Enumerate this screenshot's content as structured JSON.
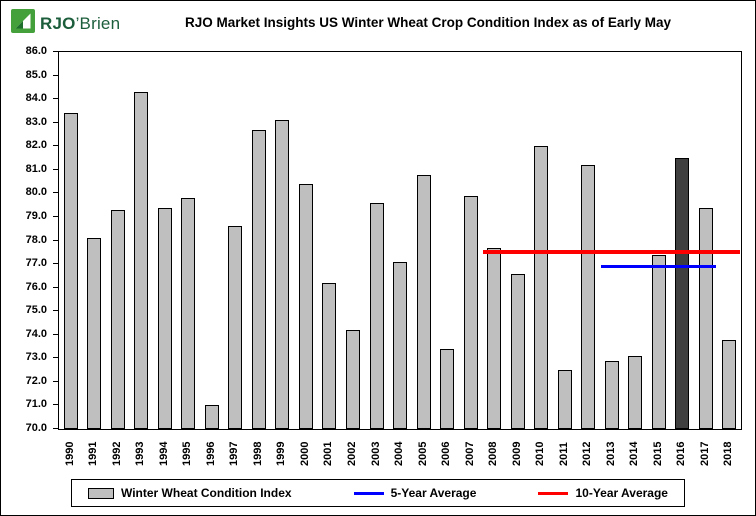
{
  "logo": {
    "brand_bold": "RJO",
    "brand_rest": "’Brien"
  },
  "header": {
    "title": "RJO Market Insights US Winter Wheat Crop Condition Index as of Early May"
  },
  "chart_data": {
    "type": "bar",
    "title": "RJO Market Insights US Winter Wheat Crop Condition Index as of Early May",
    "xlabel": "",
    "ylabel": "",
    "ylim": [
      70.0,
      86.0
    ],
    "ytick_step": 1.0,
    "grid": false,
    "legend_position": "bottom",
    "series_label": "Winter Wheat Condition Index",
    "bar_color": "#BFBFBF",
    "bar_border_color": "#000000",
    "highlight_category": "2016",
    "highlight_color": "#3F3F3F",
    "categories": [
      "1990",
      "1991",
      "1992",
      "1993",
      "1994",
      "1995",
      "1996",
      "1997",
      "1998",
      "1999",
      "2000",
      "2001",
      "2002",
      "2003",
      "2004",
      "2005",
      "2006",
      "2007",
      "2008",
      "2009",
      "2010",
      "2011",
      "2012",
      "2013",
      "2014",
      "2015",
      "2016",
      "2017",
      "2018"
    ],
    "values": [
      83.4,
      78.1,
      79.3,
      84.3,
      79.4,
      79.8,
      71.0,
      78.6,
      82.7,
      83.1,
      80.4,
      76.2,
      74.2,
      79.6,
      77.1,
      80.8,
      73.4,
      79.9,
      77.7,
      76.6,
      82.0,
      72.5,
      81.2,
      72.9,
      73.1,
      77.4,
      81.5,
      79.4,
      73.8
    ],
    "averages": [
      {
        "label": "5-Year Average",
        "value": 76.9,
        "start_category": "2013",
        "end_category": "2017",
        "color": "#0000FF",
        "thickness": 3
      },
      {
        "label": "10-Year Average",
        "value": 77.5,
        "start_category": "2008",
        "end_category": "2018",
        "color": "#FF0000",
        "thickness": 4
      }
    ]
  }
}
